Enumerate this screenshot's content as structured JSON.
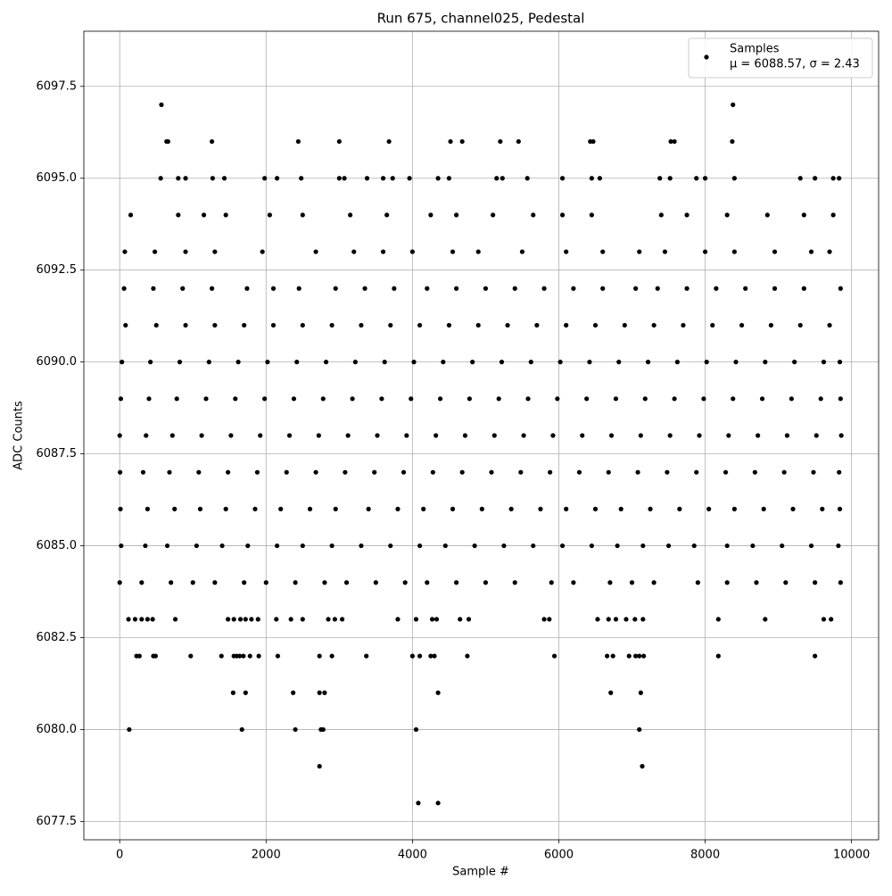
{
  "chart_data": {
    "type": "scatter",
    "title": "Run 675, channel025, Pedestal",
    "x_label": "Sample #",
    "y_label": "ADC Counts",
    "xlim": [
      -490,
      10370
    ],
    "ylim": [
      6077.0,
      6099.0
    ],
    "xticks": [
      0,
      2000,
      4000,
      6000,
      8000,
      10000
    ],
    "yticks": [
      6077.5,
      {
        "value": 6080,
        "label": "6080.0"
      },
      6082.5,
      {
        "value": 6085,
        "label": "6085.0"
      },
      6087.5,
      {
        "value": 6090,
        "label": "6090.0"
      },
      6092.5,
      {
        "value": 6095,
        "label": "6095.0"
      },
      6097.5
    ],
    "grid": true,
    "legend_position": "upper-right",
    "legend_note": "μ = 6088.57, σ = 2.43",
    "series": [
      {
        "name": "Samples",
        "color": "#000000",
        "x": [
          570,
          8380,
          640,
          660,
          1260,
          2440,
          3000,
          3680,
          4520,
          4680,
          5200,
          5450,
          6430,
          6470,
          7530,
          7580,
          8370,
          560,
          800,
          900,
          1270,
          1430,
          1980,
          2150,
          2480,
          3000,
          3070,
          3380,
          3600,
          3730,
          3960,
          4350,
          4500,
          5150,
          5230,
          5570,
          6050,
          6450,
          6560,
          7380,
          7520,
          7880,
          8000,
          8400,
          9300,
          9500,
          9750,
          9830,
          150,
          800,
          1150,
          1450,
          2050,
          2500,
          3150,
          3650,
          4250,
          4600,
          5100,
          5650,
          6050,
          6450,
          7400,
          7750,
          8300,
          8850,
          9350,
          9750,
          70,
          480,
          900,
          1300,
          1950,
          2680,
          3200,
          3600,
          4000,
          4550,
          4900,
          5500,
          6100,
          6600,
          7100,
          7450,
          8000,
          8400,
          8950,
          9450,
          9700,
          60,
          460,
          860,
          1260,
          1740,
          2100,
          2450,
          2950,
          3350,
          3750,
          4200,
          4600,
          5000,
          5400,
          5800,
          6200,
          6600,
          7050,
          7350,
          7750,
          8150,
          8550,
          8950,
          9350,
          9850,
          80,
          500,
          900,
          1300,
          1700,
          2100,
          2500,
          2900,
          3300,
          3700,
          4100,
          4500,
          4900,
          5300,
          5700,
          6100,
          6500,
          6900,
          7300,
          7700,
          8100,
          8500,
          8900,
          9300,
          9700,
          30,
          420,
          820,
          1220,
          1620,
          2020,
          2420,
          2820,
          3220,
          3620,
          4020,
          4420,
          4820,
          5220,
          5620,
          6020,
          6420,
          6820,
          7220,
          7620,
          8020,
          8420,
          8820,
          9220,
          9620,
          9840,
          15,
          400,
          780,
          1180,
          1580,
          1980,
          2380,
          2780,
          3180,
          3580,
          3980,
          4380,
          4780,
          5180,
          5580,
          5980,
          6380,
          6780,
          7180,
          7580,
          7980,
          8380,
          8780,
          9180,
          9580,
          9850,
          0,
          360,
          720,
          1120,
          1520,
          1920,
          2320,
          2720,
          3120,
          3520,
          3920,
          4320,
          4720,
          5120,
          5520,
          5920,
          6320,
          6720,
          7120,
          7520,
          7920,
          8320,
          8720,
          9120,
          9520,
          9860,
          5,
          320,
          680,
          1080,
          1480,
          1880,
          2280,
          2680,
          3080,
          3480,
          3880,
          4280,
          4680,
          5080,
          5480,
          5880,
          6280,
          6680,
          7080,
          7480,
          7880,
          8280,
          8680,
          9080,
          9480,
          9830,
          10,
          380,
          750,
          1100,
          1450,
          1850,
          2200,
          2600,
          2950,
          3400,
          3800,
          4150,
          4550,
          4950,
          5350,
          5750,
          6100,
          6500,
          6850,
          7250,
          7650,
          8050,
          8400,
          8800,
          9200,
          9600,
          9840,
          20,
          350,
          650,
          1050,
          1400,
          1750,
          2150,
          2500,
          2900,
          3300,
          3700,
          4100,
          4450,
          4850,
          5250,
          5650,
          6050,
          6450,
          6800,
          7150,
          7500,
          7850,
          8300,
          8650,
          9050,
          9450,
          9820,
          0,
          300,
          700,
          1000,
          1300,
          1700,
          2000,
          2400,
          2800,
          3100,
          3500,
          3900,
          4200,
          4600,
          5000,
          5400,
          5900,
          6200,
          6700,
          7000,
          7300,
          7900,
          8300,
          8700,
          9100,
          9500,
          9850,
          120,
          210,
          300,
          380,
          450,
          760,
          1480,
          1560,
          1650,
          1720,
          1800,
          1890,
          2140,
          2340,
          2500,
          2850,
          2940,
          3040,
          3800,
          4050,
          4270,
          4330,
          4650,
          4770,
          5800,
          5870,
          6530,
          6680,
          6780,
          6920,
          7040,
          7150,
          8180,
          8820,
          9620,
          9720,
          230,
          270,
          460,
          490,
          970,
          1390,
          1560,
          1600,
          1640,
          1690,
          1780,
          1900,
          2160,
          2730,
          2900,
          3370,
          4000,
          4100,
          4250,
          4300,
          4750,
          5940,
          6660,
          6740,
          6960,
          7050,
          7100,
          7160,
          8180,
          9500,
          1550,
          1720,
          2370,
          2730,
          2800,
          4350,
          6710,
          7120,
          130,
          1670,
          2400,
          2750,
          2780,
          4050,
          7100,
          2730,
          7140,
          4080,
          4350
        ],
        "values": [
          6097,
          6097,
          6096,
          6096,
          6096,
          6096,
          6096,
          6096,
          6096,
          6096,
          6096,
          6096,
          6096,
          6096,
          6096,
          6096,
          6096,
          6095,
          6095,
          6095,
          6095,
          6095,
          6095,
          6095,
          6095,
          6095,
          6095,
          6095,
          6095,
          6095,
          6095,
          6095,
          6095,
          6095,
          6095,
          6095,
          6095,
          6095,
          6095,
          6095,
          6095,
          6095,
          6095,
          6095,
          6095,
          6095,
          6095,
          6095,
          6094,
          6094,
          6094,
          6094,
          6094,
          6094,
          6094,
          6094,
          6094,
          6094,
          6094,
          6094,
          6094,
          6094,
          6094,
          6094,
          6094,
          6094,
          6094,
          6094,
          6093,
          6093,
          6093,
          6093,
          6093,
          6093,
          6093,
          6093,
          6093,
          6093,
          6093,
          6093,
          6093,
          6093,
          6093,
          6093,
          6093,
          6093,
          6093,
          6093,
          6093,
          6092,
          6092,
          6092,
          6092,
          6092,
          6092,
          6092,
          6092,
          6092,
          6092,
          6092,
          6092,
          6092,
          6092,
          6092,
          6092,
          6092,
          6092,
          6092,
          6092,
          6092,
          6092,
          6092,
          6092,
          6092,
          6091,
          6091,
          6091,
          6091,
          6091,
          6091,
          6091,
          6091,
          6091,
          6091,
          6091,
          6091,
          6091,
          6091,
          6091,
          6091,
          6091,
          6091,
          6091,
          6091,
          6091,
          6091,
          6091,
          6091,
          6091,
          6090,
          6090,
          6090,
          6090,
          6090,
          6090,
          6090,
          6090,
          6090,
          6090,
          6090,
          6090,
          6090,
          6090,
          6090,
          6090,
          6090,
          6090,
          6090,
          6090,
          6090,
          6090,
          6090,
          6090,
          6090,
          6090,
          6089,
          6089,
          6089,
          6089,
          6089,
          6089,
          6089,
          6089,
          6089,
          6089,
          6089,
          6089,
          6089,
          6089,
          6089,
          6089,
          6089,
          6089,
          6089,
          6089,
          6089,
          6089,
          6089,
          6089,
          6089,
          6089,
          6088,
          6088,
          6088,
          6088,
          6088,
          6088,
          6088,
          6088,
          6088,
          6088,
          6088,
          6088,
          6088,
          6088,
          6088,
          6088,
          6088,
          6088,
          6088,
          6088,
          6088,
          6088,
          6088,
          6088,
          6088,
          6088,
          6087,
          6087,
          6087,
          6087,
          6087,
          6087,
          6087,
          6087,
          6087,
          6087,
          6087,
          6087,
          6087,
          6087,
          6087,
          6087,
          6087,
          6087,
          6087,
          6087,
          6087,
          6087,
          6087,
          6087,
          6087,
          6087,
          6086,
          6086,
          6086,
          6086,
          6086,
          6086,
          6086,
          6086,
          6086,
          6086,
          6086,
          6086,
          6086,
          6086,
          6086,
          6086,
          6086,
          6086,
          6086,
          6086,
          6086,
          6086,
          6086,
          6086,
          6086,
          6086,
          6086,
          6085,
          6085,
          6085,
          6085,
          6085,
          6085,
          6085,
          6085,
          6085,
          6085,
          6085,
          6085,
          6085,
          6085,
          6085,
          6085,
          6085,
          6085,
          6085,
          6085,
          6085,
          6085,
          6085,
          6085,
          6085,
          6085,
          6085,
          6084,
          6084,
          6084,
          6084,
          6084,
          6084,
          6084,
          6084,
          6084,
          6084,
          6084,
          6084,
          6084,
          6084,
          6084,
          6084,
          6084,
          6084,
          6084,
          6084,
          6084,
          6084,
          6084,
          6084,
          6084,
          6084,
          6084,
          6083,
          6083,
          6083,
          6083,
          6083,
          6083,
          6083,
          6083,
          6083,
          6083,
          6083,
          6083,
          6083,
          6083,
          6083,
          6083,
          6083,
          6083,
          6083,
          6083,
          6083,
          6083,
          6083,
          6083,
          6083,
          6083,
          6083,
          6083,
          6083,
          6083,
          6083,
          6083,
          6083,
          6083,
          6083,
          6083,
          6082,
          6082,
          6082,
          6082,
          6082,
          6082,
          6082,
          6082,
          6082,
          6082,
          6082,
          6082,
          6082,
          6082,
          6082,
          6082,
          6082,
          6082,
          6082,
          6082,
          6082,
          6082,
          6082,
          6082,
          6082,
          6082,
          6082,
          6082,
          6082,
          6082,
          6081,
          6081,
          6081,
          6081,
          6081,
          6081,
          6081,
          6081,
          6080,
          6080,
          6080,
          6080,
          6080,
          6080,
          6080,
          6079,
          6079,
          6078,
          6078
        ]
      }
    ]
  }
}
